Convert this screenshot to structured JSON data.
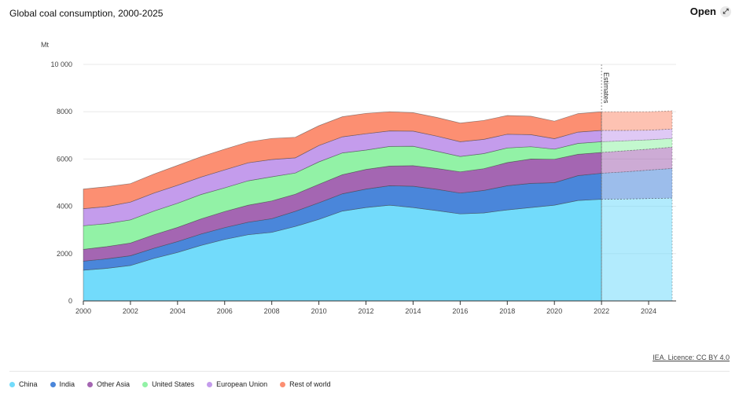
{
  "header": {
    "title": "Global coal consumption, 2000-2025",
    "open_label": "Open",
    "open_icon": "expand-arrows-icon"
  },
  "footer": {
    "licence": "IEA. Licence: CC BY 4.0"
  },
  "chart_data": {
    "type": "area",
    "stacked": true,
    "title": "Global coal consumption, 2000-2025",
    "ylabel": "Mt",
    "xlabel": "",
    "ylim": [
      0,
      10000
    ],
    "xlim": [
      2000,
      2025
    ],
    "y_ticks": [
      "0",
      "2000",
      "4000",
      "6000",
      "8000",
      "10 000"
    ],
    "y_tick_values": [
      0,
      2000,
      4000,
      6000,
      8000,
      10000
    ],
    "x_ticks": [
      2000,
      2002,
      2004,
      2006,
      2008,
      2010,
      2012,
      2014,
      2016,
      2018,
      2020,
      2022,
      2024
    ],
    "annotation": {
      "label": "Estimates",
      "x": 2022
    },
    "estimates_from": 2022,
    "grid": true,
    "legend_position": "bottom-left",
    "x": [
      2000,
      2001,
      2002,
      2003,
      2004,
      2005,
      2006,
      2007,
      2008,
      2009,
      2010,
      2011,
      2012,
      2013,
      2014,
      2015,
      2016,
      2017,
      2018,
      2019,
      2020,
      2021,
      2022,
      2023,
      2024,
      2025
    ],
    "series": [
      {
        "name": "China",
        "color": "#72dbfb",
        "values": [
          1300,
          1380,
          1500,
          1800,
          2050,
          2350,
          2600,
          2800,
          2900,
          3150,
          3450,
          3800,
          3950,
          4050,
          3950,
          3820,
          3680,
          3720,
          3850,
          3950,
          4050,
          4250,
          4300,
          4310,
          4330,
          4350
        ]
      },
      {
        "name": "India",
        "color": "#4a86da",
        "values": [
          380,
          400,
          410,
          430,
          460,
          480,
          500,
          530,
          580,
          640,
          700,
          730,
          780,
          820,
          900,
          900,
          880,
          950,
          1020,
          1020,
          950,
          1050,
          1100,
          1150,
          1200,
          1250
        ]
      },
      {
        "name": "Other Asia",
        "color": "#a466b2",
        "values": [
          500,
          520,
          540,
          570,
          600,
          640,
          680,
          720,
          750,
          720,
          780,
          810,
          830,
          830,
          870,
          880,
          900,
          920,
          980,
          1030,
          990,
          900,
          880,
          890,
          890,
          900
        ]
      },
      {
        "name": "United States",
        "color": "#92f2a6",
        "values": [
          1000,
          970,
          980,
          1000,
          1020,
          1030,
          1000,
          1030,
          1020,
          900,
          950,
          920,
          820,
          830,
          820,
          730,
          650,
          640,
          620,
          520,
          430,
          460,
          450,
          420,
          390,
          370
        ]
      },
      {
        "name": "European Union",
        "color": "#c49cec",
        "values": [
          720,
          720,
          750,
          760,
          760,
          740,
          760,
          760,
          730,
          640,
          690,
          680,
          690,
          660,
          640,
          640,
          620,
          600,
          580,
          510,
          440,
          480,
          480,
          440,
          410,
          400
        ]
      },
      {
        "name": "Rest of world",
        "color": "#fc8f72",
        "values": [
          830,
          840,
          780,
          810,
          840,
          860,
          880,
          880,
          890,
          870,
          840,
          850,
          860,
          810,
          780,
          790,
          790,
          800,
          790,
          780,
          740,
          780,
          790,
          790,
          780,
          770
        ]
      }
    ]
  }
}
